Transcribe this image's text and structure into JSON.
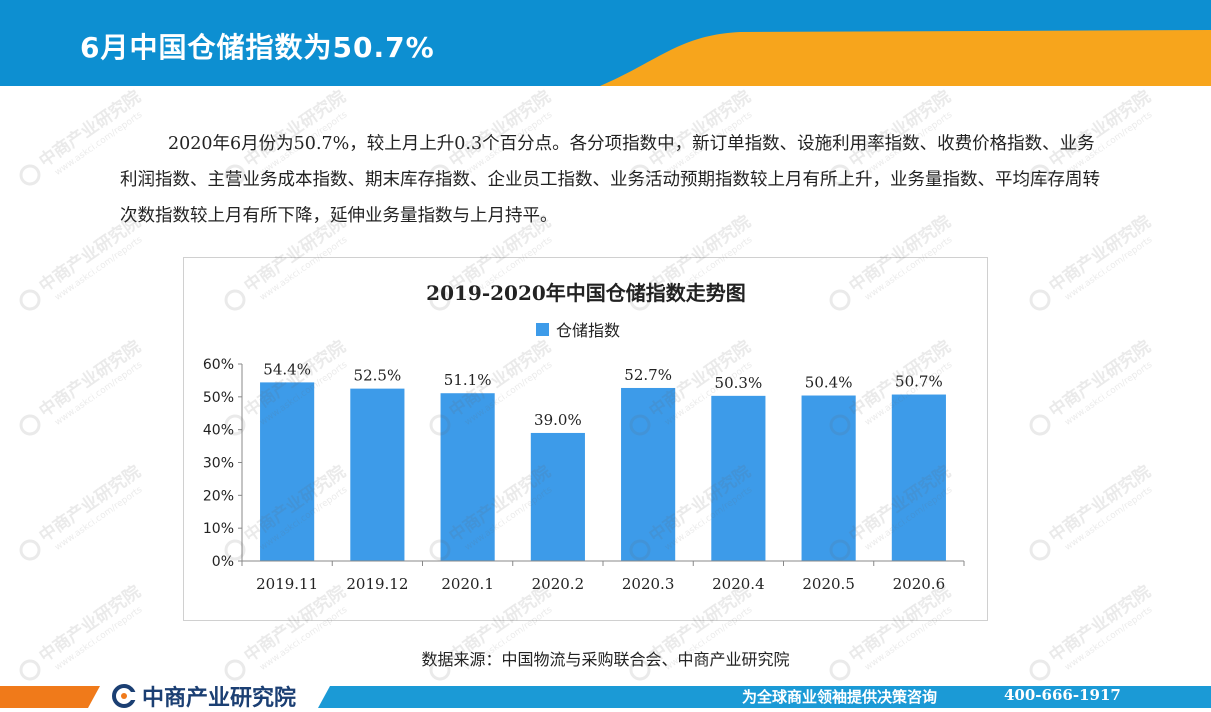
{
  "header": {
    "title": "6月中国仓储指数为50.7%"
  },
  "paragraph": "2020年6月份为50.7%，较上月上升0.3个百分点。各分项指数中，新订单指数、设施利用率指数、收费价格指数、业务利润指数、主营业务成本指数、期末库存指数、企业员工指数、业务活动预期指数较上月有所上升，业务量指数、平均库存周转次数指数较上月有所下降，延伸业务量指数与上月持平。",
  "chart_data": {
    "type": "bar",
    "title": "2019-2020年中国仓储指数走势图",
    "categories": [
      "2019.11",
      "2019.12",
      "2020.1",
      "2020.2",
      "2020.3",
      "2020.4",
      "2020.5",
      "2020.6"
    ],
    "series": [
      {
        "name": "仓储指数",
        "values": [
          54.4,
          52.5,
          51.1,
          39.0,
          52.7,
          50.3,
          50.4,
          50.7
        ]
      }
    ],
    "value_labels": [
      "54.4%",
      "52.5%",
      "51.1%",
      "39.0%",
      "52.7%",
      "50.3%",
      "50.4%",
      "50.7%"
    ],
    "y_ticks": [
      "0%",
      "10%",
      "20%",
      "30%",
      "40%",
      "50%",
      "60%"
    ],
    "ylim": [
      0,
      60
    ],
    "xlabel": "",
    "ylabel": "",
    "grid": false,
    "legend_position": "top",
    "bar_color": "#3d9be9"
  },
  "source": "数据来源：中国物流与采购联合会、中商产业研究院",
  "footer": {
    "brand": "中商产业研究院",
    "slogan": "为全球商业领袖提供决策咨询",
    "phone": "400-666-1917"
  },
  "watermark": {
    "text": "中商产业研究院",
    "subtext": "www.askci.com/reports"
  },
  "colors": {
    "header_blue": "#0d8fd1",
    "header_orange": "#f7a51c",
    "footer_orange": "#f07a1a",
    "footer_blue": "#1b9ad6",
    "brand_navy": "#1b3f73"
  }
}
